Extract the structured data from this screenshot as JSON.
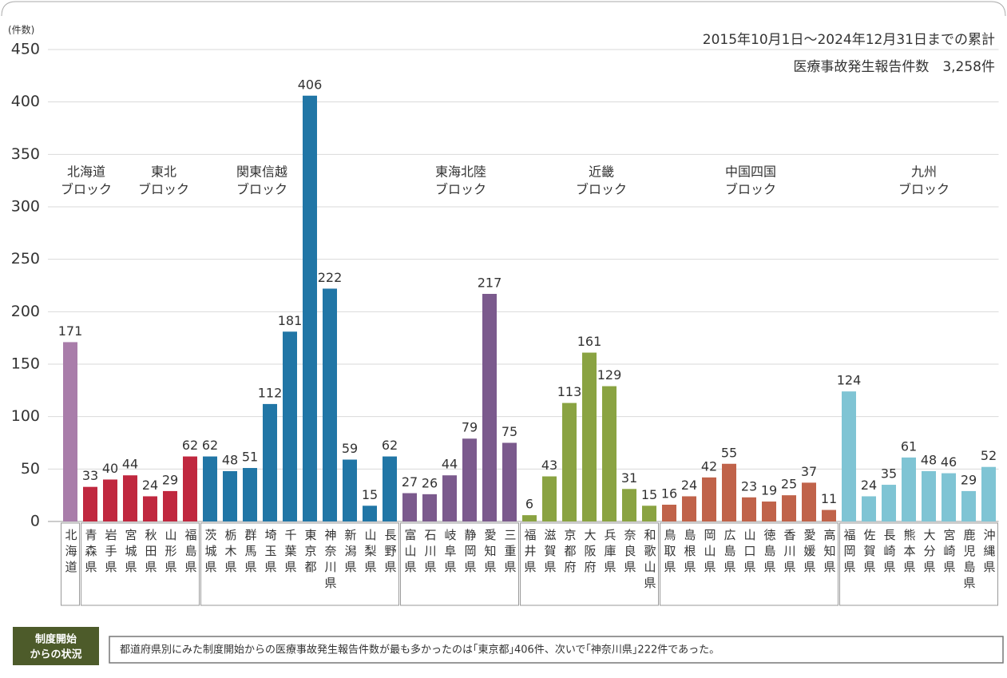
{
  "chart_data": {
    "type": "bar",
    "unit_label": "(件数)",
    "title": [
      "2015年10月1日～2024年12月31日までの累計",
      "医療事故発生報告件数　3,258件"
    ],
    "ylim": [
      0,
      450
    ],
    "yticks": [
      0,
      50,
      100,
      150,
      200,
      250,
      300,
      350,
      400,
      450
    ],
    "grid": true,
    "groups": [
      {
        "label": [
          "北海道",
          "ブロック"
        ],
        "color": "#a97daa",
        "categories": [
          "北海道"
        ],
        "values": [
          171
        ]
      },
      {
        "label": [
          "東北",
          "ブロック"
        ],
        "color": "#c0283f",
        "categories": [
          "青森県",
          "岩手県",
          "宮城県",
          "秋田県",
          "山形県",
          "福島県"
        ],
        "values": [
          33,
          40,
          44,
          24,
          29,
          62
        ]
      },
      {
        "label": [
          "関東信越",
          "ブロック"
        ],
        "color": "#2176a6",
        "categories": [
          "茨城県",
          "栃木県",
          "群馬県",
          "埼玉県",
          "千葉県",
          "東京都",
          "神奈川県",
          "新潟県",
          "山梨県",
          "長野県"
        ],
        "values": [
          62,
          48,
          51,
          112,
          181,
          406,
          222,
          59,
          15,
          62
        ]
      },
      {
        "label": [
          "東海北陸",
          "ブロック"
        ],
        "color": "#7b5a8d",
        "categories": [
          "富山県",
          "石川県",
          "岐阜県",
          "静岡県",
          "愛知県",
          "三重県"
        ],
        "values": [
          27,
          26,
          44,
          79,
          217,
          75
        ]
      },
      {
        "label": [
          "近畿",
          "ブロック"
        ],
        "color": "#8aa342",
        "categories": [
          "福井県",
          "滋賀県",
          "京都府",
          "大阪府",
          "兵庫県",
          "奈良県",
          "和歌山県"
        ],
        "values": [
          6,
          43,
          113,
          161,
          129,
          31,
          15
        ]
      },
      {
        "label": [
          "中国四国",
          "ブロック"
        ],
        "color": "#c0634a",
        "categories": [
          "鳥取県",
          "島根県",
          "岡山県",
          "広島県",
          "山口県",
          "徳島県",
          "香川県",
          "愛媛県",
          "高知県"
        ],
        "values": [
          16,
          24,
          42,
          55,
          23,
          19,
          25,
          37,
          11
        ]
      },
      {
        "label": [
          "九州",
          "ブロック"
        ],
        "color": "#7fc4d4",
        "categories": [
          "福岡県",
          "佐賀県",
          "長崎県",
          "熊本県",
          "大分県",
          "宮崎県",
          "鹿児島県",
          "沖縄県"
        ],
        "values": [
          124,
          24,
          35,
          61,
          48,
          46,
          29,
          52
        ]
      }
    ]
  },
  "footer": {
    "badge": [
      "制度開始",
      "からの状況"
    ],
    "text": "都道府県別にみた制度開始からの医療事故発生報告件数が最も多かったのは｢東京都｣406件、次いで｢神奈川県｣222件であった。"
  }
}
